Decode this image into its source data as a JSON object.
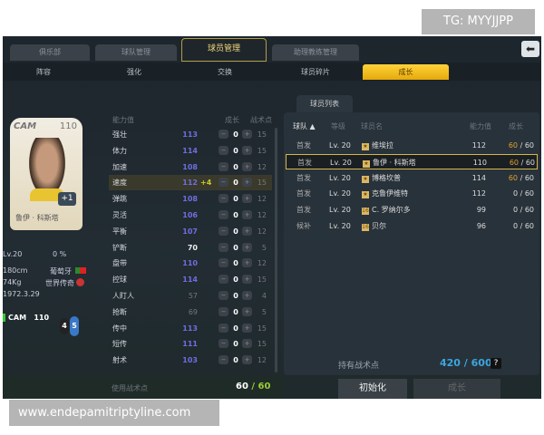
{
  "watermarks": {
    "top": "TG: MYYJJPP",
    "bottom": "www.endepamitriptyline.com"
  },
  "tabs": [
    {
      "label": "俱乐部"
    },
    {
      "label": "球队管理"
    },
    {
      "label": "球员管理",
      "active": true
    },
    {
      "label": "助理教练管理"
    }
  ],
  "subtabs": [
    {
      "label": "阵容"
    },
    {
      "label": "强化"
    },
    {
      "label": "交换"
    },
    {
      "label": "球员碎片"
    },
    {
      "label": "成长",
      "active": true
    }
  ],
  "card": {
    "position": "CAM",
    "rating": "110",
    "plus": "+1",
    "name": "鲁伊 · 科斯塔"
  },
  "player": {
    "level": "Lv.20",
    "exp": "0 %",
    "height": "180cm",
    "nation": "葡萄牙",
    "weight": "74Kg",
    "type": "世界传奇",
    "birth": "1972.3.29",
    "pos": "CAM",
    "pos_rating": "110",
    "num_a": "4",
    "num_b": "5"
  },
  "attr_header": {
    "name": "能力值",
    "grow": "成长",
    "points": "战术点"
  },
  "attrs": [
    {
      "name": "强壮",
      "value": "113",
      "grow": "0",
      "points": "15",
      "c": "b"
    },
    {
      "name": "体力",
      "value": "114",
      "grow": "0",
      "points": "15",
      "c": "b"
    },
    {
      "name": "加速",
      "value": "108",
      "grow": "0",
      "points": "12",
      "c": "b"
    },
    {
      "name": "速度",
      "value": "112",
      "bonus": "+4",
      "grow": "0",
      "points": "15",
      "c": "b",
      "hl": true
    },
    {
      "name": "弹跳",
      "value": "108",
      "grow": "0",
      "points": "12",
      "c": "b"
    },
    {
      "name": "灵活",
      "value": "106",
      "grow": "0",
      "points": "12",
      "c": "b"
    },
    {
      "name": "平衡",
      "value": "107",
      "grow": "0",
      "points": "12",
      "c": "b"
    },
    {
      "name": "铲断",
      "value": "70",
      "grow": "0",
      "points": "5",
      "c": "w"
    },
    {
      "name": "盘带",
      "value": "110",
      "grow": "0",
      "points": "12",
      "c": "b"
    },
    {
      "name": "控球",
      "value": "114",
      "grow": "0",
      "points": "15",
      "c": "b"
    },
    {
      "name": "人盯人",
      "value": "57",
      "grow": "0",
      "points": "4",
      "c": "g"
    },
    {
      "name": "抢断",
      "value": "69",
      "grow": "0",
      "points": "5",
      "c": "g"
    },
    {
      "name": "传中",
      "value": "113",
      "grow": "0",
      "points": "15",
      "c": "b"
    },
    {
      "name": "短传",
      "value": "111",
      "grow": "0",
      "points": "15",
      "c": "b"
    },
    {
      "name": "射术",
      "value": "103",
      "grow": "0",
      "points": "12",
      "c": "b"
    }
  ],
  "used_points": {
    "label": "使用战术点",
    "used": "60",
    "total": "60"
  },
  "list": {
    "tab": "球员列表",
    "headers": [
      "球队 ▲",
      "等级",
      "球员名",
      "能力值",
      "成长"
    ],
    "rows": [
      {
        "team": "首发",
        "level": "Lv. 20",
        "badge": "★",
        "name": "维埃拉",
        "rating": "112",
        "grow": "60",
        "max": "60"
      },
      {
        "team": "首发",
        "level": "Lv. 20",
        "badge": "★",
        "name": "鲁伊 · 科斯塔",
        "rating": "110",
        "grow": "60",
        "max": "60",
        "selected": true
      },
      {
        "team": "首发",
        "level": "Lv. 20",
        "badge": "★",
        "name": "博格坎普",
        "rating": "114",
        "grow": "60",
        "max": "60"
      },
      {
        "team": "首发",
        "level": "Lv. 20",
        "badge": "★",
        "name": "克鲁伊维特",
        "rating": "112",
        "grow": "0",
        "max": "60"
      },
      {
        "team": "首发",
        "level": "Lv. 20",
        "badge": "16",
        "name": "C. 罗纳尔多",
        "rating": "99",
        "grow": "0",
        "max": "60"
      },
      {
        "team": "候补",
        "level": "Lv. 20",
        "badge": "16",
        "name": "贝尔",
        "rating": "96",
        "grow": "0",
        "max": "60"
      }
    ]
  },
  "owned_points": {
    "label": "持有战术点",
    "value": "420 / 600",
    "help": "?"
  },
  "buttons": {
    "reset": "初始化",
    "grow": "成长"
  },
  "colors": {
    "accent": "#f0c020",
    "stat_blue": "#6f6ee0",
    "points_blue": "#3aa6e0",
    "grow_gold": "#e0a030"
  }
}
